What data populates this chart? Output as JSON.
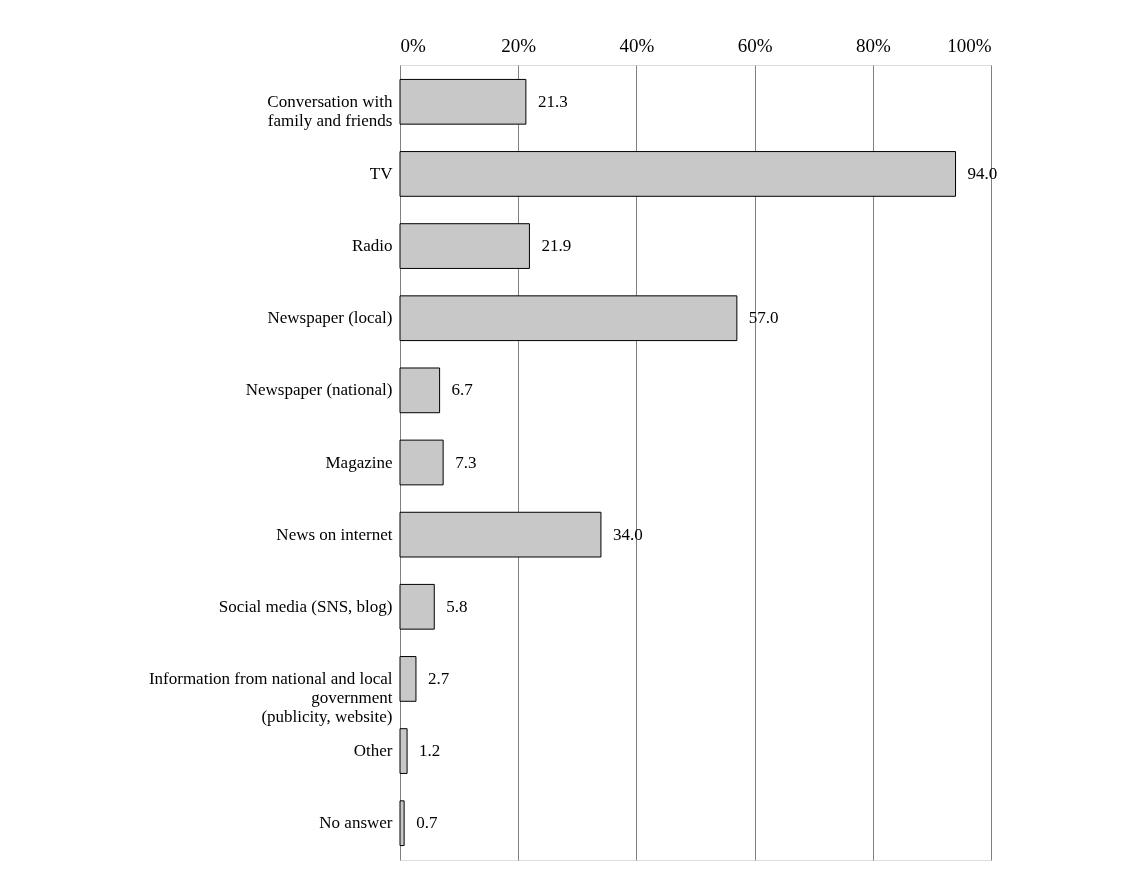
{
  "chart_data": {
    "type": "bar",
    "orientation": "horizontal",
    "categories": [
      "Conversation with\nfamily and friends",
      "TV",
      "Radio",
      "Newspaper (local)",
      "Newspaper (national)",
      "Magazine",
      "News on internet",
      "Social media (SNS, blog)",
      "Information from national and local\ngovernment\n(publicity, website)",
      "Other",
      "No answer"
    ],
    "values": [
      21.3,
      94.0,
      21.9,
      57.0,
      6.7,
      7.3,
      34.0,
      5.8,
      2.7,
      1.2,
      0.7
    ],
    "value_labels": [
      "21.3",
      "94.0",
      "21.9",
      "57.0",
      "6.7",
      "7.3",
      "34.0",
      "5.8",
      "2.7",
      "1.2",
      "0.7"
    ],
    "color": "#c8c8c8",
    "xlim": [
      0,
      100
    ],
    "xticks": [
      {
        "value": 0,
        "label": "0%"
      },
      {
        "value": 20,
        "label": "20%"
      },
      {
        "value": 40,
        "label": "40%"
      },
      {
        "value": 60,
        "label": "60%"
      },
      {
        "value": 80,
        "label": "80%"
      },
      {
        "value": 100,
        "label": "100%"
      }
    ],
    "grid": "x"
  }
}
